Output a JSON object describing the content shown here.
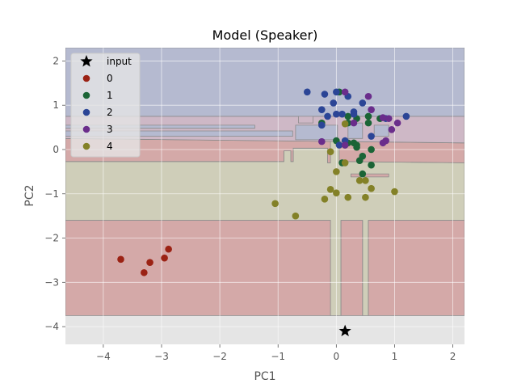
{
  "chart_data": {
    "type": "scatter",
    "title": "Model (Speaker)",
    "xlabel": "PC1",
    "ylabel": "PC2",
    "xlim": [
      -4.65,
      2.2
    ],
    "ylim": [
      -4.4,
      2.3
    ],
    "xticks": [
      -4,
      -3,
      -2,
      -1,
      0,
      1,
      2
    ],
    "yticks": [
      -4,
      -3,
      -2,
      -1,
      0,
      1,
      2
    ],
    "grid": true,
    "style": "ggplot",
    "legend_position": "upper-left",
    "colors": {
      "background": "#e5e5e5",
      "grid": "#ffffff",
      "region_0": "#d4a9a8",
      "region_2": "#b5bad0",
      "region_3": "#ceb8c6",
      "region_4": "#cfceb9",
      "series_0": "#9b2214",
      "series_1": "#1b6436",
      "series_2": "#2b4596",
      "series_3": "#6a2d8b",
      "series_4": "#838127"
    },
    "decision_regions": [
      {
        "class": "4",
        "polygon": [
          [
            -4.65,
            -0.27
          ],
          [
            -0.9,
            -0.27
          ],
          [
            -0.9,
            -0.03
          ],
          [
            -0.78,
            -0.03
          ],
          [
            -0.78,
            -0.27
          ],
          [
            -0.74,
            -0.27
          ],
          [
            -0.74,
            0.03
          ],
          [
            -0.15,
            0.03
          ],
          [
            -0.15,
            -0.3
          ],
          [
            -0.1,
            -0.3
          ],
          [
            -0.1,
            0.25
          ],
          [
            0.05,
            0.25
          ],
          [
            0.05,
            -0.27
          ],
          [
            2.2,
            -0.3
          ],
          [
            2.2,
            -1.6
          ],
          [
            0.55,
            -1.6
          ],
          [
            0.55,
            -3.75
          ],
          [
            0.45,
            -3.75
          ],
          [
            0.45,
            -1.6
          ],
          [
            0.08,
            -1.6
          ],
          [
            0.08,
            -3.75
          ],
          [
            -0.1,
            -3.75
          ],
          [
            -0.1,
            -1.6
          ],
          [
            -4.65,
            -1.6
          ]
        ]
      },
      {
        "class": "0",
        "polygon": [
          [
            -4.65,
            0.25
          ],
          [
            2.2,
            0.15
          ],
          [
            2.2,
            -0.3
          ],
          [
            0.05,
            -0.27
          ],
          [
            0.05,
            0.25
          ],
          [
            -0.1,
            0.25
          ],
          [
            -0.1,
            -0.3
          ],
          [
            -0.15,
            -0.3
          ],
          [
            -0.15,
            0.03
          ],
          [
            -0.74,
            0.03
          ],
          [
            -0.74,
            -0.27
          ],
          [
            -0.78,
            -0.27
          ],
          [
            -0.78,
            -0.03
          ],
          [
            -0.9,
            -0.03
          ],
          [
            -0.9,
            -0.27
          ],
          [
            -4.65,
            -0.27
          ]
        ]
      },
      {
        "class": "0",
        "polygon": [
          [
            -4.65,
            -1.6
          ],
          [
            -0.1,
            -1.6
          ],
          [
            -0.1,
            -3.75
          ],
          [
            -4.65,
            -3.75
          ]
        ]
      },
      {
        "class": "0",
        "polygon": [
          [
            0.08,
            -1.6
          ],
          [
            0.45,
            -1.6
          ],
          [
            0.45,
            -3.75
          ],
          [
            0.08,
            -3.75
          ]
        ]
      },
      {
        "class": "0",
        "polygon": [
          [
            0.55,
            -1.6
          ],
          [
            2.2,
            -1.6
          ],
          [
            2.2,
            -3.75
          ],
          [
            0.55,
            -3.75
          ]
        ]
      },
      {
        "class": "3",
        "polygon": [
          [
            -4.65,
            0.75
          ],
          [
            2.2,
            0.75
          ],
          [
            2.2,
            0.15
          ],
          [
            -4.65,
            0.25
          ]
        ]
      },
      {
        "class": "2",
        "polygon": [
          [
            -4.65,
            2.3
          ],
          [
            2.2,
            2.3
          ],
          [
            2.2,
            0.75
          ],
          [
            -4.65,
            0.75
          ]
        ]
      },
      {
        "class": "2",
        "polygon": [
          [
            -4.65,
            0.55
          ],
          [
            -1.4,
            0.55
          ],
          [
            -1.4,
            0.48
          ],
          [
            -4.65,
            0.48
          ]
        ]
      },
      {
        "class": "2",
        "polygon": [
          [
            -4.65,
            0.42
          ],
          [
            -0.75,
            0.42
          ],
          [
            -0.75,
            0.3
          ],
          [
            -4.65,
            0.3
          ]
        ]
      },
      {
        "class": "2",
        "polygon": [
          [
            -0.7,
            0.55
          ],
          [
            0.02,
            0.55
          ],
          [
            0.02,
            0.22
          ],
          [
            -0.7,
            0.22
          ]
        ]
      },
      {
        "class": "2",
        "polygon": [
          [
            0.2,
            0.6
          ],
          [
            0.45,
            0.6
          ],
          [
            0.45,
            0.25
          ],
          [
            0.2,
            0.25
          ]
        ]
      },
      {
        "class": "2",
        "polygon": [
          [
            0.65,
            0.55
          ],
          [
            0.9,
            0.55
          ],
          [
            0.9,
            0.3
          ],
          [
            0.65,
            0.3
          ]
        ]
      },
      {
        "class": "3",
        "polygon": [
          [
            -0.65,
            0.75
          ],
          [
            -0.4,
            0.75
          ],
          [
            -0.4,
            0.6
          ],
          [
            -0.65,
            0.6
          ]
        ]
      },
      {
        "class": "0",
        "polygon": [
          [
            0.25,
            -0.55
          ],
          [
            0.9,
            -0.55
          ],
          [
            0.9,
            -0.62
          ],
          [
            0.25,
            -0.62
          ]
        ]
      }
    ],
    "series": [
      {
        "name": "input",
        "marker": "star",
        "points": [
          [
            0.15,
            -4.1
          ]
        ]
      },
      {
        "name": "0",
        "marker": "circle",
        "points": [
          [
            -3.7,
            -2.48
          ],
          [
            -3.3,
            -2.78
          ],
          [
            -3.2,
            -2.55
          ],
          [
            -2.95,
            -2.45
          ],
          [
            -2.88,
            -2.25
          ]
        ]
      },
      {
        "name": "1",
        "marker": "circle",
        "points": [
          [
            0.05,
            1.3
          ],
          [
            0.2,
            0.75
          ],
          [
            0.35,
            0.7
          ],
          [
            0.55,
            0.75
          ],
          [
            0.75,
            0.7
          ],
          [
            0.0,
            0.2
          ],
          [
            0.2,
            0.15
          ],
          [
            0.3,
            0.15
          ],
          [
            0.35,
            0.05
          ],
          [
            0.6,
            0.0
          ],
          [
            0.45,
            -0.15
          ],
          [
            0.4,
            -0.25
          ],
          [
            0.6,
            -0.35
          ],
          [
            0.45,
            -0.55
          ],
          [
            0.1,
            -0.3
          ],
          [
            0.2,
            0.6
          ],
          [
            0.35,
            0.1
          ],
          [
            0.15,
            0.1
          ],
          [
            -0.25,
            0.6
          ],
          [
            0.55,
            0.6
          ]
        ]
      },
      {
        "name": "2",
        "marker": "circle",
        "points": [
          [
            -0.5,
            1.3
          ],
          [
            -0.2,
            1.25
          ],
          [
            0.0,
            1.3
          ],
          [
            -0.05,
            1.05
          ],
          [
            0.2,
            1.2
          ],
          [
            -0.25,
            0.9
          ],
          [
            0.1,
            0.8
          ],
          [
            0.3,
            0.85
          ],
          [
            0.45,
            1.05
          ],
          [
            -0.15,
            0.75
          ],
          [
            0.0,
            0.8
          ],
          [
            0.15,
            0.2
          ],
          [
            0.3,
            0.8
          ],
          [
            0.85,
            0.7
          ],
          [
            1.2,
            0.75
          ],
          [
            0.6,
            0.3
          ],
          [
            -0.25,
            0.55
          ],
          [
            0.05,
            0.1
          ]
        ]
      },
      {
        "name": "3",
        "marker": "circle",
        "points": [
          [
            0.15,
            1.3
          ],
          [
            0.55,
            1.2
          ],
          [
            0.6,
            0.9
          ],
          [
            0.8,
            0.72
          ],
          [
            0.9,
            0.7
          ],
          [
            0.95,
            0.45
          ],
          [
            1.05,
            0.6
          ],
          [
            0.85,
            0.2
          ],
          [
            0.8,
            0.15
          ],
          [
            -0.25,
            0.18
          ],
          [
            0.15,
            0.1
          ],
          [
            0.3,
            0.6
          ]
        ]
      },
      {
        "name": "4",
        "marker": "circle",
        "points": [
          [
            -0.1,
            -0.05
          ],
          [
            0.0,
            -0.5
          ],
          [
            0.15,
            -0.3
          ],
          [
            0.4,
            -0.7
          ],
          [
            0.5,
            -0.7
          ],
          [
            0.6,
            -0.88
          ],
          [
            1.0,
            -0.95
          ],
          [
            -0.1,
            -0.9
          ],
          [
            0.0,
            -0.98
          ],
          [
            -0.2,
            -1.12
          ],
          [
            0.2,
            -1.08
          ],
          [
            0.5,
            -1.08
          ],
          [
            -1.05,
            -1.22
          ],
          [
            -0.7,
            -1.5
          ],
          [
            0.15,
            0.58
          ]
        ]
      }
    ]
  }
}
